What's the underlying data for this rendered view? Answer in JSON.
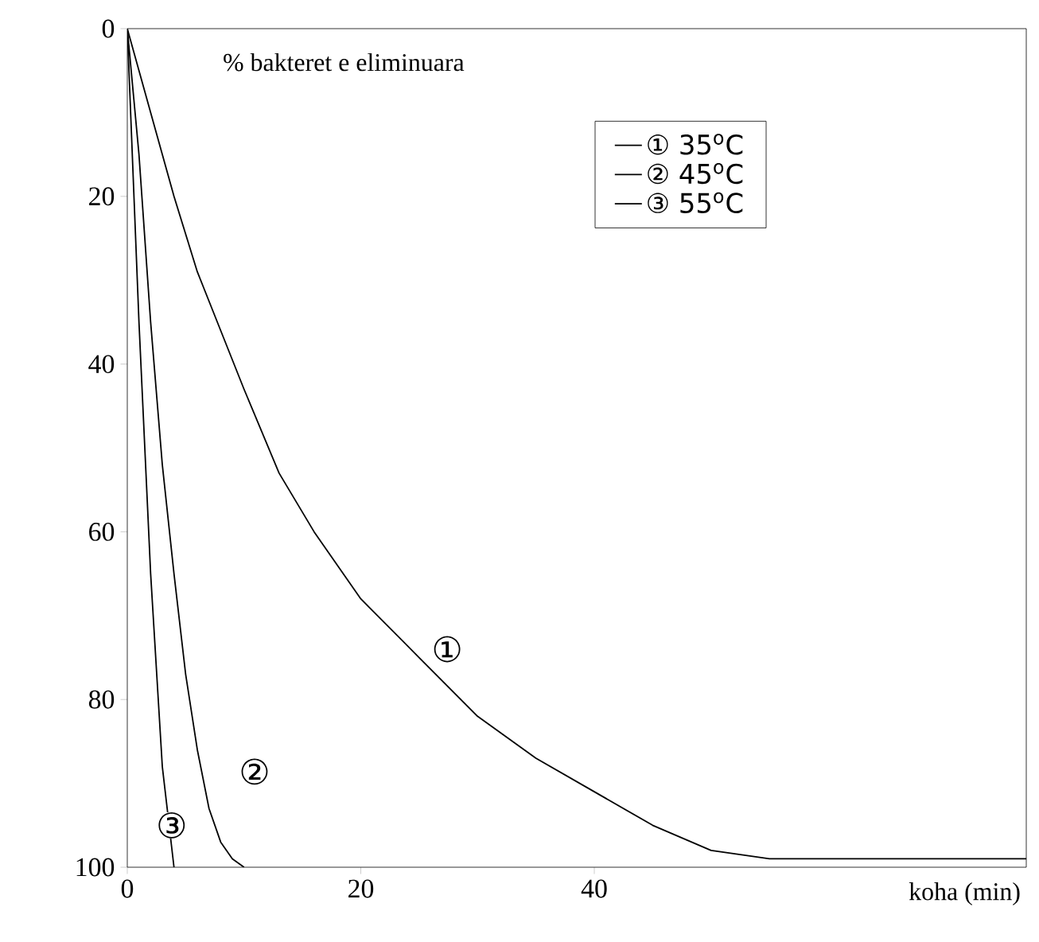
{
  "chart_data": {
    "type": "line",
    "ylabel": "% bakteret e eliminuara",
    "xlabel": "koha (min)",
    "xlim": [
      0,
      77
    ],
    "ylim": [
      100,
      0
    ],
    "xticks": [
      0,
      20,
      40
    ],
    "yticks": [
      0,
      20,
      40,
      60,
      80,
      100
    ],
    "legend": "top right",
    "grid": false,
    "marker": "none",
    "line_style": "solid",
    "series": [
      {
        "name": "① 35$^{o}$C",
        "color": "#000000",
        "x": [
          0,
          1,
          2,
          4,
          6,
          8,
          10,
          13,
          16,
          20,
          25,
          30,
          35,
          40,
          45,
          50,
          55,
          60,
          77
        ],
        "values": [
          0,
          5,
          10,
          20,
          29,
          36,
          43,
          53,
          60,
          68,
          75,
          82,
          87,
          91,
          95,
          98,
          99,
          99,
          99
        ]
      },
      {
        "name": "② 45$^{o}$C",
        "color": "#000000",
        "x": [
          0,
          1,
          2,
          3,
          4,
          5,
          6,
          7,
          8,
          9,
          10
        ],
        "values": [
          0,
          15,
          35,
          52,
          65,
          77,
          86,
          93,
          97,
          99,
          100
        ]
      },
      {
        "name": "③ 55$^{o}$C",
        "color": "#000000",
        "x": [
          0,
          1,
          2,
          3,
          4
        ],
        "values": [
          0,
          35,
          65,
          88,
          100
        ]
      }
    ],
    "annotations": [
      {
        "text": "①",
        "x": 27.4,
        "y": 74
      },
      {
        "text": "②",
        "x": 10.9,
        "y": 88.6
      },
      {
        "text": "③",
        "x": 3.8,
        "y": 95
      }
    ]
  }
}
